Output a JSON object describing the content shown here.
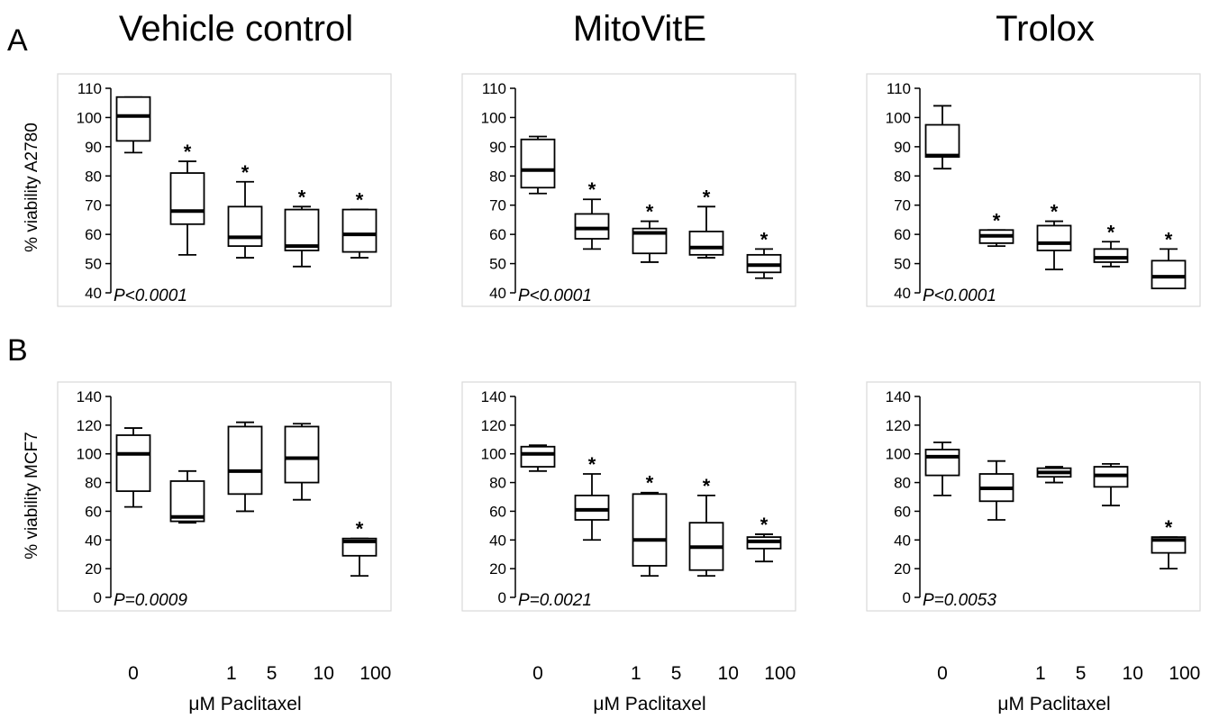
{
  "column_titles": [
    "Vehicle control",
    "MitoVitE",
    "Trolox"
  ],
  "row_letters": [
    "A",
    "B"
  ],
  "x_axis": {
    "label": "μM Paclitaxel",
    "tick_labels": [
      "0",
      "1",
      "5",
      "10",
      "100"
    ],
    "tick_positions": [
      0,
      1.7,
      2.4,
      3.3,
      4.2
    ]
  },
  "chart_data": [
    {
      "type": "box",
      "row": "A",
      "column": "Vehicle control",
      "ylabel": "% viability A2780",
      "ylim": [
        40,
        110
      ],
      "yticks": [
        "40",
        "50",
        "60",
        "70",
        "80",
        "90",
        "100",
        "110"
      ],
      "annotation": "P<0.0001",
      "significance_marker": "*",
      "categories": [
        "0",
        "1",
        "5",
        "10",
        "100"
      ],
      "boxes": [
        {
          "min": 88,
          "q1": 92,
          "median": 100.5,
          "q3": 107,
          "max": 107,
          "significant": false
        },
        {
          "min": 53,
          "q1": 63.5,
          "median": 68,
          "q3": 81,
          "max": 85,
          "significant": true
        },
        {
          "min": 52,
          "q1": 56,
          "median": 59,
          "q3": 69.5,
          "max": 78,
          "significant": true
        },
        {
          "min": 49,
          "q1": 54.5,
          "median": 56,
          "q3": 68.5,
          "max": 69.5,
          "significant": true
        },
        {
          "min": 52,
          "q1": 54,
          "median": 60,
          "q3": 68.5,
          "max": 68.5,
          "significant": true
        }
      ]
    },
    {
      "type": "box",
      "row": "A",
      "column": "MitoVitE",
      "ylabel": "",
      "ylim": [
        40,
        110
      ],
      "yticks": [
        "40",
        "50",
        "60",
        "70",
        "80",
        "90",
        "100",
        "110"
      ],
      "annotation": "P<0.0001",
      "significance_marker": "*",
      "categories": [
        "0",
        "1",
        "5",
        "10",
        "100"
      ],
      "boxes": [
        {
          "min": 74,
          "q1": 76,
          "median": 82,
          "q3": 92.5,
          "max": 93.5,
          "significant": false
        },
        {
          "min": 55,
          "q1": 58.5,
          "median": 62,
          "q3": 67,
          "max": 72,
          "significant": true
        },
        {
          "min": 50.5,
          "q1": 53.5,
          "median": 60.5,
          "q3": 62,
          "max": 64.5,
          "significant": true
        },
        {
          "min": 52,
          "q1": 53,
          "median": 55.5,
          "q3": 61,
          "max": 69.5,
          "significant": true
        },
        {
          "min": 45,
          "q1": 47,
          "median": 49.5,
          "q3": 53,
          "max": 55,
          "significant": true
        }
      ]
    },
    {
      "type": "box",
      "row": "A",
      "column": "Trolox",
      "ylabel": "",
      "ylim": [
        40,
        110
      ],
      "yticks": [
        "40",
        "50",
        "60",
        "70",
        "80",
        "90",
        "100",
        "110"
      ],
      "annotation": "P<0.0001",
      "significance_marker": "*",
      "categories": [
        "0",
        "1",
        "5",
        "10",
        "100"
      ],
      "boxes": [
        {
          "min": 82.5,
          "q1": 86.5,
          "median": 87,
          "q3": 97.5,
          "max": 104,
          "significant": false
        },
        {
          "min": 56,
          "q1": 57,
          "median": 59.5,
          "q3": 61.5,
          "max": 61.5,
          "significant": true
        },
        {
          "min": 48,
          "q1": 54.5,
          "median": 57,
          "q3": 63,
          "max": 64.5,
          "significant": true
        },
        {
          "min": 49,
          "q1": 50.5,
          "median": 52,
          "q3": 55,
          "max": 57.5,
          "significant": true
        },
        {
          "min": 41.5,
          "q1": 41.5,
          "median": 45.5,
          "q3": 51,
          "max": 55,
          "significant": true
        }
      ]
    },
    {
      "type": "box",
      "row": "B",
      "column": "Vehicle control",
      "ylabel": "% viability MCF7",
      "ylim": [
        0,
        140
      ],
      "yticks": [
        "0",
        "20",
        "40",
        "60",
        "80",
        "100",
        "120",
        "140"
      ],
      "annotation": "P=0.0009",
      "significance_marker": "*",
      "categories": [
        "0",
        "1",
        "5",
        "10",
        "100"
      ],
      "boxes": [
        {
          "min": 63,
          "q1": 74,
          "median": 100,
          "q3": 113,
          "max": 118,
          "significant": false
        },
        {
          "min": 52,
          "q1": 53,
          "median": 56,
          "q3": 81,
          "max": 88,
          "significant": false
        },
        {
          "min": 60,
          "q1": 72,
          "median": 88,
          "q3": 119,
          "max": 122,
          "significant": false
        },
        {
          "min": 68,
          "q1": 80,
          "median": 97,
          "q3": 119,
          "max": 121,
          "significant": false
        },
        {
          "min": 15,
          "q1": 29,
          "median": 39,
          "q3": 41,
          "max": 41,
          "significant": true
        }
      ]
    },
    {
      "type": "box",
      "row": "B",
      "column": "MitoVitE",
      "ylabel": "",
      "ylim": [
        0,
        140
      ],
      "yticks": [
        "0",
        "20",
        "40",
        "60",
        "80",
        "100",
        "120",
        "140"
      ],
      "annotation": "P=0.0021",
      "significance_marker": "*",
      "categories": [
        "0",
        "1",
        "5",
        "10",
        "100"
      ],
      "boxes": [
        {
          "min": 88,
          "q1": 91,
          "median": 100,
          "q3": 105,
          "max": 106,
          "significant": false
        },
        {
          "min": 40,
          "q1": 54,
          "median": 61,
          "q3": 71,
          "max": 86,
          "significant": true
        },
        {
          "min": 15,
          "q1": 22,
          "median": 40,
          "q3": 72,
          "max": 73,
          "significant": true
        },
        {
          "min": 15,
          "q1": 19,
          "median": 35,
          "q3": 52,
          "max": 71,
          "significant": true
        },
        {
          "min": 25,
          "q1": 34,
          "median": 39,
          "q3": 42,
          "max": 44,
          "significant": true
        }
      ]
    },
    {
      "type": "box",
      "row": "B",
      "column": "Trolox",
      "ylabel": "",
      "ylim": [
        0,
        140
      ],
      "yticks": [
        "0",
        "20",
        "40",
        "60",
        "80",
        "100",
        "120",
        "140"
      ],
      "annotation": "P=0.0053",
      "significance_marker": "*",
      "categories": [
        "0",
        "1",
        "5",
        "10",
        "100"
      ],
      "boxes": [
        {
          "min": 71,
          "q1": 85,
          "median": 98,
          "q3": 103,
          "max": 108,
          "significant": false
        },
        {
          "min": 54,
          "q1": 67,
          "median": 76,
          "q3": 86,
          "max": 95,
          "significant": false
        },
        {
          "min": 80,
          "q1": 84,
          "median": 87,
          "q3": 90,
          "max": 91,
          "significant": false
        },
        {
          "min": 64,
          "q1": 77,
          "median": 85,
          "q3": 91,
          "max": 93,
          "significant": false
        },
        {
          "min": 20,
          "q1": 31,
          "median": 40,
          "q3": 42,
          "max": 42,
          "significant": true
        }
      ]
    }
  ]
}
